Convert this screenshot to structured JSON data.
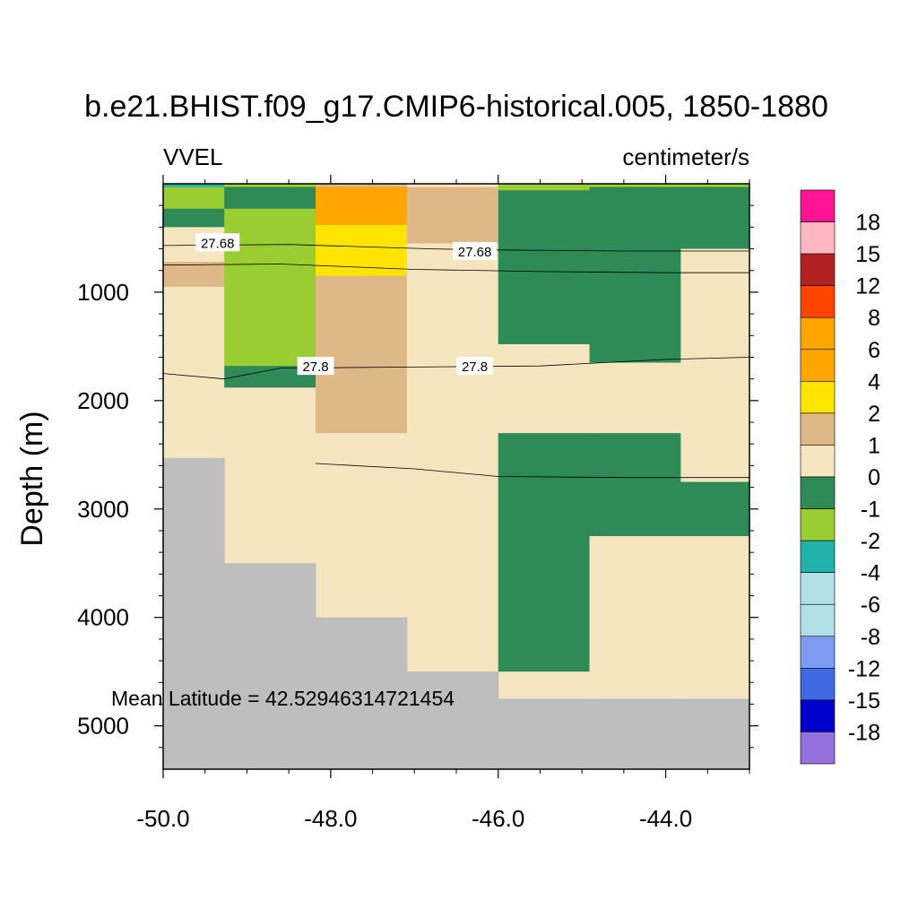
{
  "chart_data": {
    "type": "heatmap",
    "title": "b.e21.BHIST.f09_g17.CMIP6-historical.005, 1850-1880",
    "variable_label": "VVEL",
    "units_label": "centimeter/s",
    "xlabel": "",
    "ylabel": "Depth (m)",
    "xlim": [
      -50.0,
      -43.0
    ],
    "ylim": [
      0,
      5400
    ],
    "y_inverted": true,
    "x_ticks": [
      -50.0,
      -48.0,
      -46.0,
      -44.0
    ],
    "x_tick_labels": [
      "-50.0",
      "-48.0",
      "-46.0",
      "-44.0"
    ],
    "y_ticks": [
      1000,
      2000,
      3000,
      4000,
      5000
    ],
    "y_tick_labels": [
      "1000",
      "2000",
      "3000",
      "4000",
      "5000"
    ],
    "annotation": "Mean Latitude = 42.52946314721454",
    "land_color": "#bebebe",
    "colorbar": {
      "colors": [
        "#ff1493",
        "#ffb6c1",
        "#b22222",
        "#ff4500",
        "#ffa500",
        "#ffa500",
        "#ffe400",
        "#deb887",
        "#f5e6c0",
        "#2e8b57",
        "#9acd32",
        "#20b2aa",
        "#b0e0e6",
        "#b0e0e6",
        "#7b9cf0",
        "#4169e1",
        "#0000cd",
        "#9370db"
      ],
      "labels": [
        "18",
        "15",
        "12",
        "8",
        "6",
        "4",
        "2",
        "1",
        "0",
        "-1",
        "-2",
        "-4",
        "-6",
        "-8",
        "-12",
        "-15",
        "-18"
      ]
    },
    "columns": [
      {
        "x": [
          -50.0,
          -49.27
        ],
        "bottom_depth": 2530,
        "cells": [
          [
            0,
            30,
            "#20b2aa"
          ],
          [
            30,
            230,
            "#9acd32"
          ],
          [
            230,
            400,
            "#2e8b57"
          ],
          [
            400,
            720,
            "#f5e6c0"
          ],
          [
            720,
            950,
            "#deb887"
          ],
          [
            950,
            2530,
            "#f5e6c0"
          ]
        ]
      },
      {
        "x": [
          -49.27,
          -48.18
        ],
        "bottom_depth": 3500,
        "cells": [
          [
            0,
            30,
            "#9acd32"
          ],
          [
            30,
            230,
            "#2e8b57"
          ],
          [
            230,
            1680,
            "#9acd32"
          ],
          [
            1680,
            1880,
            "#2e8b57"
          ],
          [
            1880,
            3500,
            "#f5e6c0"
          ]
        ]
      },
      {
        "x": [
          -48.18,
          -47.09
        ],
        "bottom_depth": 4000,
        "cells": [
          [
            0,
            30,
            "#deb887"
          ],
          [
            30,
            380,
            "#ffa500"
          ],
          [
            380,
            850,
            "#ffe400"
          ],
          [
            850,
            2300,
            "#deb887"
          ],
          [
            2300,
            4000,
            "#f5e6c0"
          ]
        ]
      },
      {
        "x": [
          -47.09,
          -46.0
        ],
        "bottom_depth": 4500,
        "cells": [
          [
            0,
            30,
            "#f5e6c0"
          ],
          [
            30,
            550,
            "#deb887"
          ],
          [
            550,
            4500,
            "#f5e6c0"
          ]
        ]
      },
      {
        "x": [
          -46.0,
          -44.91
        ],
        "bottom_depth": 4750,
        "cells": [
          [
            0,
            30,
            "#9acd32"
          ],
          [
            30,
            60,
            "#9acd32"
          ],
          [
            60,
            1480,
            "#2e8b57"
          ],
          [
            1480,
            2300,
            "#f5e6c0"
          ],
          [
            2300,
            4500,
            "#2e8b57"
          ],
          [
            4500,
            4750,
            "#f5e6c0"
          ]
        ]
      },
      {
        "x": [
          -44.91,
          -43.82
        ],
        "bottom_depth": 4750,
        "cells": [
          [
            0,
            30,
            "#9acd32"
          ],
          [
            30,
            1650,
            "#2e8b57"
          ],
          [
            1650,
            2300,
            "#f5e6c0"
          ],
          [
            2300,
            3250,
            "#2e8b57"
          ],
          [
            3250,
            4750,
            "#f5e6c0"
          ]
        ]
      },
      {
        "x": [
          -43.82,
          -43.0
        ],
        "bottom_depth": 4750,
        "cells": [
          [
            0,
            30,
            "#9acd32"
          ],
          [
            30,
            600,
            "#2e8b57"
          ],
          [
            600,
            2750,
            "#f5e6c0"
          ],
          [
            2750,
            3250,
            "#2e8b57"
          ],
          [
            3250,
            4750,
            "#f5e6c0"
          ]
        ]
      }
    ],
    "contours": [
      {
        "label": "27.68",
        "points": [
          [
            -50.0,
            570
          ],
          [
            -48.5,
            560
          ],
          [
            -46.8,
            600
          ],
          [
            -46.0,
            610
          ],
          [
            -44.5,
            620
          ],
          [
            -43.0,
            620
          ]
        ],
        "label_at": [
          [
            -49.35,
            540
          ],
          [
            -46.28,
            620
          ]
        ]
      },
      {
        "label": "",
        "points": [
          [
            -50.0,
            750
          ],
          [
            -48.6,
            740
          ],
          [
            -47.0,
            790
          ],
          [
            -45.5,
            810
          ],
          [
            -44.0,
            820
          ],
          [
            -43.0,
            820
          ]
        ],
        "label_at": []
      },
      {
        "label": "27.8",
        "points": [
          [
            -50.0,
            1750
          ],
          [
            -49.27,
            1800
          ],
          [
            -48.6,
            1700
          ],
          [
            -47.0,
            1690
          ],
          [
            -45.5,
            1680
          ],
          [
            -44.0,
            1620
          ],
          [
            -43.0,
            1600
          ]
        ],
        "label_at": [
          [
            -48.18,
            1680
          ],
          [
            -46.28,
            1680
          ]
        ]
      },
      {
        "label": "",
        "points": [
          [
            -48.18,
            2580
          ],
          [
            -47.0,
            2630
          ],
          [
            -46.0,
            2700
          ],
          [
            -44.5,
            2710
          ],
          [
            -43.0,
            2710
          ]
        ],
        "label_at": []
      }
    ]
  }
}
